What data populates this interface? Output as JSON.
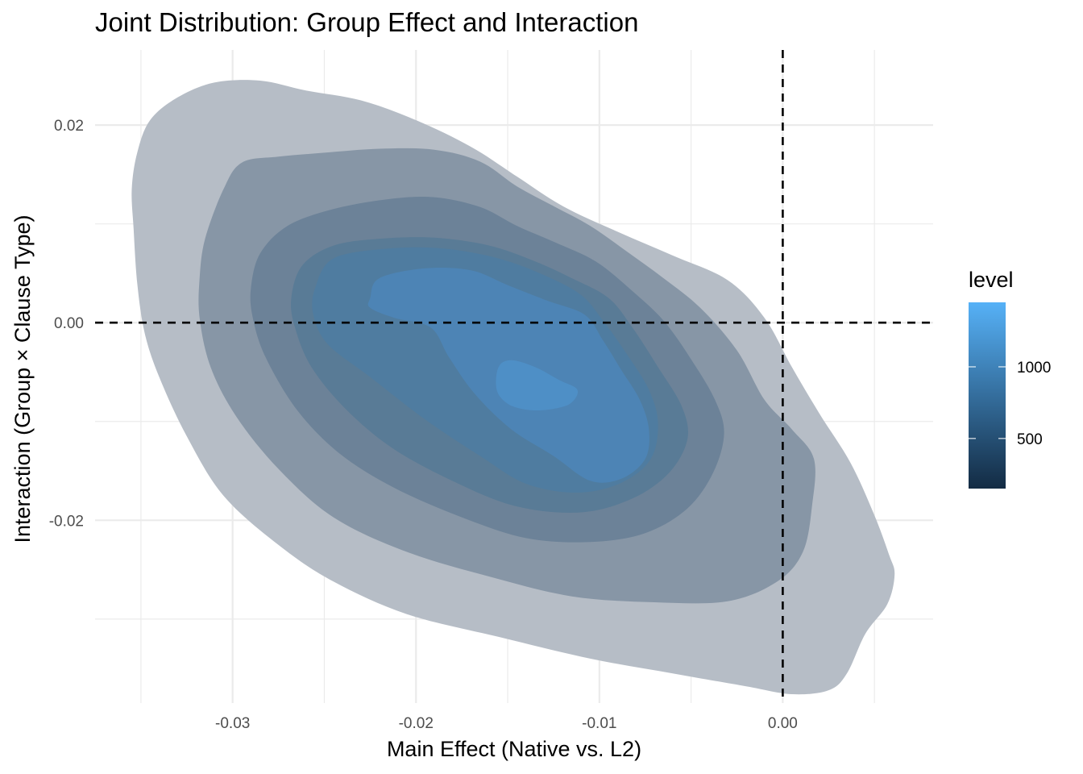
{
  "chart_data": {
    "type": "contour-filled",
    "title": "Joint Distribution: Group Effect and Interaction",
    "xlabel": "Main Effect (Native vs. L2)",
    "ylabel": "Interaction (Group × Clause Type)",
    "xlim": [
      -0.0375,
      0.0082
    ],
    "ylim": [
      -0.0385,
      0.0276
    ],
    "x_ticks": [
      {
        "value": -0.03,
        "label": "-0.03"
      },
      {
        "value": -0.02,
        "label": "-0.02"
      },
      {
        "value": -0.01,
        "label": "-0.01"
      },
      {
        "value": 0.0,
        "label": "0.00"
      }
    ],
    "x_minor": [
      -0.035,
      -0.025,
      -0.015,
      -0.005,
      0.005
    ],
    "y_ticks": [
      {
        "value": 0.02,
        "label": "0.02"
      },
      {
        "value": 0.0,
        "label": "0.00"
      },
      {
        "value": -0.02,
        "label": "-0.02"
      }
    ],
    "y_minor": [
      0.01,
      -0.01,
      -0.03
    ],
    "grid": true,
    "reference_lines": [
      {
        "orientation": "horizontal",
        "value": 0.0,
        "style": "dashed",
        "color": "#000000"
      },
      {
        "orientation": "vertical",
        "value": 0.0,
        "style": "dashed",
        "color": "#000000"
      }
    ],
    "legend": {
      "title": "level",
      "position": "right",
      "type": "colorbar",
      "range": [
        150,
        1450
      ],
      "ticks": [
        {
          "value": 500,
          "label": "500"
        },
        {
          "value": 1000,
          "label": "1000"
        }
      ],
      "color_low": "#132B43",
      "color_high": "#56B1F7"
    },
    "contour_levels": [
      {
        "level": 200,
        "color": "#b6bdc6",
        "polygon": [
          [
            -0.0352,
            0.0172
          ],
          [
            -0.0345,
            0.0205
          ],
          [
            -0.033,
            0.0228
          ],
          [
            -0.031,
            0.0243
          ],
          [
            -0.0285,
            0.0245
          ],
          [
            -0.026,
            0.0235
          ],
          [
            -0.023,
            0.0225
          ],
          [
            -0.02,
            0.0205
          ],
          [
            -0.017,
            0.0178
          ],
          [
            -0.0145,
            0.0148
          ],
          [
            -0.012,
            0.0118
          ],
          [
            -0.009,
            0.0092
          ],
          [
            -0.006,
            0.0068
          ],
          [
            -0.003,
            0.0043
          ],
          [
            -0.001,
            0.0005
          ],
          [
            0.0005,
            -0.0045
          ],
          [
            0.002,
            -0.0092
          ],
          [
            0.0037,
            -0.0142
          ],
          [
            0.005,
            -0.0195
          ],
          [
            0.0058,
            -0.0235
          ],
          [
            0.0061,
            -0.0255
          ],
          [
            0.0057,
            -0.0285
          ],
          [
            0.0045,
            -0.0315
          ],
          [
            0.0035,
            -0.0355
          ],
          [
            0.0025,
            -0.0372
          ],
          [
            0.0005,
            -0.0376
          ],
          [
            -0.002,
            -0.0368
          ],
          [
            -0.006,
            -0.0355
          ],
          [
            -0.0105,
            -0.034
          ],
          [
            -0.0155,
            -0.0318
          ],
          [
            -0.0205,
            -0.0295
          ],
          [
            -0.0245,
            -0.0262
          ],
          [
            -0.0275,
            -0.0225
          ],
          [
            -0.0305,
            -0.0175
          ],
          [
            -0.0325,
            -0.0115
          ],
          [
            -0.034,
            -0.0055
          ],
          [
            -0.0348,
            -0.001
          ],
          [
            -0.0352,
            0.004
          ],
          [
            -0.0354,
            0.0095
          ],
          [
            -0.0355,
            0.0135
          ]
        ]
      },
      {
        "level": 400,
        "color": "#8796a6",
        "polygon": [
          [
            -0.0315,
            0.0085
          ],
          [
            -0.0305,
            0.0135
          ],
          [
            -0.0295,
            0.0162
          ],
          [
            -0.0275,
            0.0168
          ],
          [
            -0.025,
            0.0172
          ],
          [
            -0.022,
            0.0176
          ],
          [
            -0.019,
            0.0175
          ],
          [
            -0.0165,
            0.0163
          ],
          [
            -0.0145,
            0.0138
          ],
          [
            -0.0125,
            0.0118
          ],
          [
            -0.0105,
            0.0098
          ],
          [
            -0.0085,
            0.0072
          ],
          [
            -0.0065,
            0.0045
          ],
          [
            -0.0045,
            0.0015
          ],
          [
            -0.0025,
            -0.0028
          ],
          [
            -0.001,
            -0.0078
          ],
          [
            0.0005,
            -0.0108
          ],
          [
            0.0017,
            -0.0138
          ],
          [
            0.0016,
            -0.0185
          ],
          [
            0.0011,
            -0.0232
          ],
          [
            -0.0003,
            -0.0262
          ],
          [
            -0.003,
            -0.0282
          ],
          [
            -0.007,
            -0.0283
          ],
          [
            -0.0115,
            -0.0277
          ],
          [
            -0.016,
            -0.0257
          ],
          [
            -0.0205,
            -0.0232
          ],
          [
            -0.0245,
            -0.0197
          ],
          [
            -0.0275,
            -0.0148
          ],
          [
            -0.0298,
            -0.0095
          ],
          [
            -0.0312,
            -0.0045
          ],
          [
            -0.0318,
            0.0005
          ],
          [
            -0.0318,
            0.0045
          ]
        ]
      },
      {
        "level": 600,
        "color": "#6c8298",
        "polygon": [
          [
            -0.029,
            0.0035
          ],
          [
            -0.0285,
            0.007
          ],
          [
            -0.027,
            0.0098
          ],
          [
            -0.0245,
            0.0115
          ],
          [
            -0.0215,
            0.0125
          ],
          [
            -0.019,
            0.0127
          ],
          [
            -0.0165,
            0.0117
          ],
          [
            -0.0145,
            0.0098
          ],
          [
            -0.0125,
            0.0082
          ],
          [
            -0.0102,
            0.0062
          ],
          [
            -0.0082,
            0.0032
          ],
          [
            -0.0065,
            0.0002
          ],
          [
            -0.005,
            -0.0037
          ],
          [
            -0.0037,
            -0.0078
          ],
          [
            -0.0032,
            -0.0112
          ],
          [
            -0.0038,
            -0.0152
          ],
          [
            -0.0052,
            -0.0188
          ],
          [
            -0.0075,
            -0.0213
          ],
          [
            -0.0105,
            -0.0222
          ],
          [
            -0.014,
            -0.0218
          ],
          [
            -0.0175,
            -0.0197
          ],
          [
            -0.0212,
            -0.0167
          ],
          [
            -0.0242,
            -0.0132
          ],
          [
            -0.0265,
            -0.0088
          ],
          [
            -0.0282,
            -0.0035
          ],
          [
            -0.0289,
            0.0005
          ]
        ]
      },
      {
        "level": 800,
        "color": "#597b96",
        "polygon": [
          [
            -0.0268,
            0.0025
          ],
          [
            -0.0262,
            0.0058
          ],
          [
            -0.0245,
            0.0078
          ],
          [
            -0.022,
            0.0085
          ],
          [
            -0.019,
            0.0086
          ],
          [
            -0.016,
            0.0078
          ],
          [
            -0.0135,
            0.0062
          ],
          [
            -0.0115,
            0.0045
          ],
          [
            -0.0095,
            0.0025
          ],
          [
            -0.0082,
            -0.0005
          ],
          [
            -0.0068,
            -0.0045
          ],
          [
            -0.0055,
            -0.0085
          ],
          [
            -0.0052,
            -0.0118
          ],
          [
            -0.0062,
            -0.0152
          ],
          [
            -0.0082,
            -0.0178
          ],
          [
            -0.011,
            -0.0192
          ],
          [
            -0.0145,
            -0.0186
          ],
          [
            -0.0178,
            -0.0162
          ],
          [
            -0.0212,
            -0.0128
          ],
          [
            -0.0238,
            -0.0088
          ],
          [
            -0.0257,
            -0.0045
          ],
          [
            -0.0266,
            -0.0005
          ]
        ]
      },
      {
        "level": 1000,
        "color": "#4f7ca0",
        "polygon": [
          [
            -0.0255,
            0.0035
          ],
          [
            -0.0245,
            0.0065
          ],
          [
            -0.0215,
            0.0075
          ],
          [
            -0.0185,
            0.0075
          ],
          [
            -0.0155,
            0.0065
          ],
          [
            -0.013,
            0.0048
          ],
          [
            -0.011,
            0.0028
          ],
          [
            -0.0098,
            0.0002
          ],
          [
            -0.0085,
            -0.0032
          ],
          [
            -0.0073,
            -0.0068
          ],
          [
            -0.0068,
            -0.0102
          ],
          [
            -0.0072,
            -0.0138
          ],
          [
            -0.0088,
            -0.0162
          ],
          [
            -0.0112,
            -0.0172
          ],
          [
            -0.014,
            -0.0163
          ],
          [
            -0.0165,
            -0.0135
          ],
          [
            -0.0195,
            -0.0098
          ],
          [
            -0.0225,
            -0.0055
          ],
          [
            -0.0248,
            -0.0022
          ],
          [
            -0.0256,
            0.0008
          ]
        ]
      },
      {
        "level": 1200,
        "color": "#4d84b5",
        "polygon": [
          [
            -0.0225,
            0.0025
          ],
          [
            -0.022,
            0.0045
          ],
          [
            -0.0195,
            0.0055
          ],
          [
            -0.017,
            0.0053
          ],
          [
            -0.015,
            0.0038
          ],
          [
            -0.0128,
            0.0022
          ],
          [
            -0.0108,
            0.0008
          ],
          [
            -0.0098,
            -0.0018
          ],
          [
            -0.0088,
            -0.0048
          ],
          [
            -0.0078,
            -0.0078
          ],
          [
            -0.0073,
            -0.0108
          ],
          [
            -0.0075,
            -0.0138
          ],
          [
            -0.0088,
            -0.0158
          ],
          [
            -0.0105,
            -0.016
          ],
          [
            -0.0125,
            -0.0135
          ],
          [
            -0.0148,
            -0.0108
          ],
          [
            -0.0168,
            -0.0072
          ],
          [
            -0.0182,
            -0.0035
          ],
          [
            -0.0192,
            -0.0005
          ],
          [
            -0.0212,
            0.0005
          ],
          [
            -0.0225,
            0.0015
          ]
        ]
      },
      {
        "level": 1350,
        "color": "#4e8fc6",
        "polygon": [
          [
            -0.0155,
            -0.0045
          ],
          [
            -0.0148,
            -0.0038
          ],
          [
            -0.0135,
            -0.0045
          ],
          [
            -0.0122,
            -0.0058
          ],
          [
            -0.0112,
            -0.0068
          ],
          [
            -0.0116,
            -0.0082
          ],
          [
            -0.0128,
            -0.0088
          ],
          [
            -0.014,
            -0.0088
          ],
          [
            -0.015,
            -0.0082
          ],
          [
            -0.0156,
            -0.0068
          ]
        ]
      }
    ]
  }
}
